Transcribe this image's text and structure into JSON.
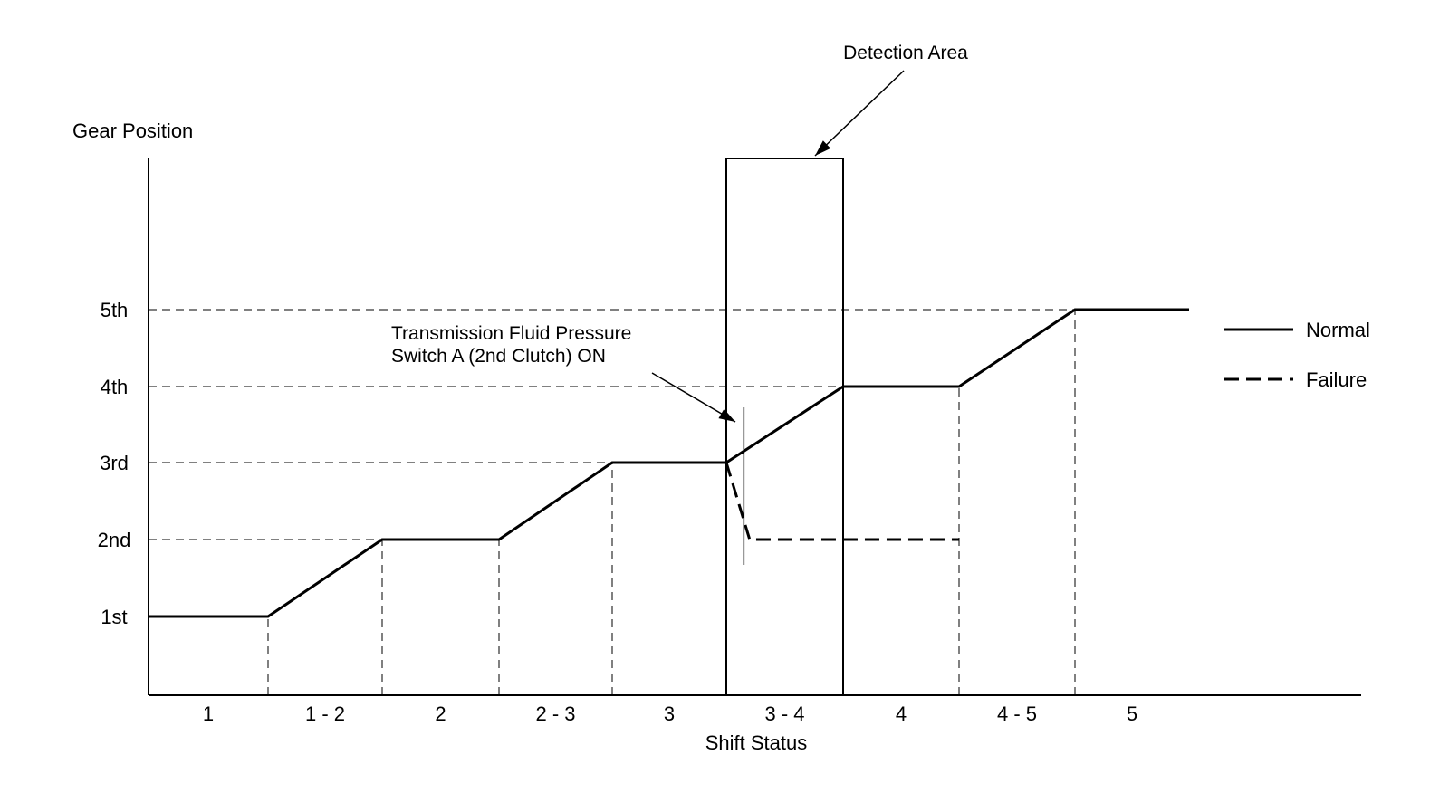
{
  "chart_data": {
    "type": "line",
    "title": "",
    "xlabel": "Shift Status",
    "ylabel": "Gear Position",
    "x_categories": [
      "1",
      "1 - 2",
      "2",
      "2 - 3",
      "3",
      "3 - 4",
      "4",
      "4 - 5",
      "5"
    ],
    "y_categories": [
      "1st",
      "2nd",
      "3rd",
      "4th",
      "5th"
    ],
    "grid": "dashed guide lines at gear levels and shift boundaries",
    "legend": {
      "placement": "right",
      "entries": [
        {
          "name": "Normal",
          "style": "solid"
        },
        {
          "name": "Failure",
          "style": "dashed"
        }
      ]
    },
    "series": [
      {
        "name": "Normal",
        "style": "solid",
        "points": [
          [
            0,
            1
          ],
          [
            1,
            1
          ],
          [
            2,
            2
          ],
          [
            3,
            2
          ],
          [
            4,
            3
          ],
          [
            5,
            3
          ],
          [
            6,
            4
          ],
          [
            7,
            4
          ],
          [
            8,
            5
          ],
          [
            9,
            5
          ]
        ]
      },
      {
        "name": "Failure",
        "style": "dashed",
        "points": [
          [
            5,
            3
          ],
          [
            5.2,
            2
          ],
          [
            7,
            2
          ]
        ]
      }
    ],
    "annotations": {
      "detection_area": {
        "label": "Detection Area",
        "x_range": [
          5,
          6
        ]
      },
      "switch_on": {
        "label_lines": [
          "Transmission Fluid Pressure",
          "Switch A (2nd Clutch) ON"
        ],
        "x": 5.15
      }
    }
  }
}
